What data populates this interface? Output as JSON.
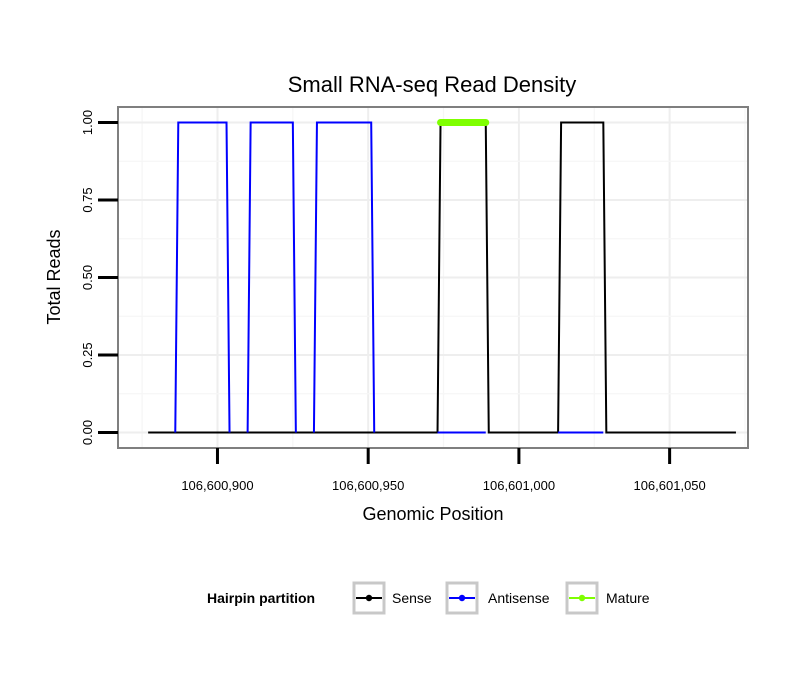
{
  "chart_data": {
    "type": "line",
    "title": "Small RNA-seq Read Density",
    "xlabel": "Genomic Position",
    "ylabel": "Total Reads",
    "xlim": [
      106600867,
      106601076
    ],
    "ylim": [
      -0.05,
      1.05
    ],
    "x_ticks": [
      106600900,
      106600950,
      106601000,
      106601050
    ],
    "x_tick_labels": [
      "106,600,900",
      "106,600,950",
      "106,601,000",
      "106,601,050"
    ],
    "y_ticks": [
      0,
      0.25,
      0.5,
      0.75,
      1
    ],
    "y_tick_labels": [
      "0.00",
      "0.25",
      "0.50",
      "0.75",
      "1.00"
    ],
    "grid": true,
    "legend": {
      "title": "Hairpin partition",
      "position": "bottom",
      "entries": [
        "Sense",
        "Antisense",
        "Mature"
      ]
    },
    "series": [
      {
        "name": "Sense",
        "color": "#000000",
        "x": [
          106600877,
          106600973,
          106600974,
          106600989,
          106600990,
          106601013,
          106601014,
          106601028,
          106601029,
          106601072
        ],
        "y": [
          0,
          0,
          1,
          1,
          0,
          0,
          1,
          1,
          0,
          0
        ]
      },
      {
        "name": "Antisense",
        "color": "#0000ff",
        "x": [
          106600886,
          106600887,
          106600903,
          106600904,
          106600910,
          106600911,
          106600925,
          106600926,
          106600932,
          106600933,
          106600951,
          106600952,
          106600973,
          106600989,
          106601013,
          106601028
        ],
        "y": [
          0,
          1,
          1,
          0,
          0,
          1,
          1,
          0,
          0,
          1,
          1,
          0,
          null,
          0,
          0,
          0
        ],
        "segments": [
          {
            "x": [
              106600886,
              106600887,
              106600903,
              106600904
            ],
            "y": [
              0,
              1,
              1,
              0
            ]
          },
          {
            "x": [
              106600910,
              106600911,
              106600925,
              106600926
            ],
            "y": [
              0,
              1,
              1,
              0
            ]
          },
          {
            "x": [
              106600932,
              106600933,
              106600951,
              106600952
            ],
            "y": [
              0,
              1,
              1,
              0
            ]
          },
          {
            "x": [
              106600973,
              106600989
            ],
            "y": [
              0,
              0
            ]
          },
          {
            "x": [
              106601013,
              106601028
            ],
            "y": [
              0,
              0
            ]
          }
        ]
      },
      {
        "name": "Mature",
        "color": "#7fff00",
        "x": [
          106600974,
          106600989
        ],
        "y": [
          1,
          1
        ]
      }
    ]
  }
}
